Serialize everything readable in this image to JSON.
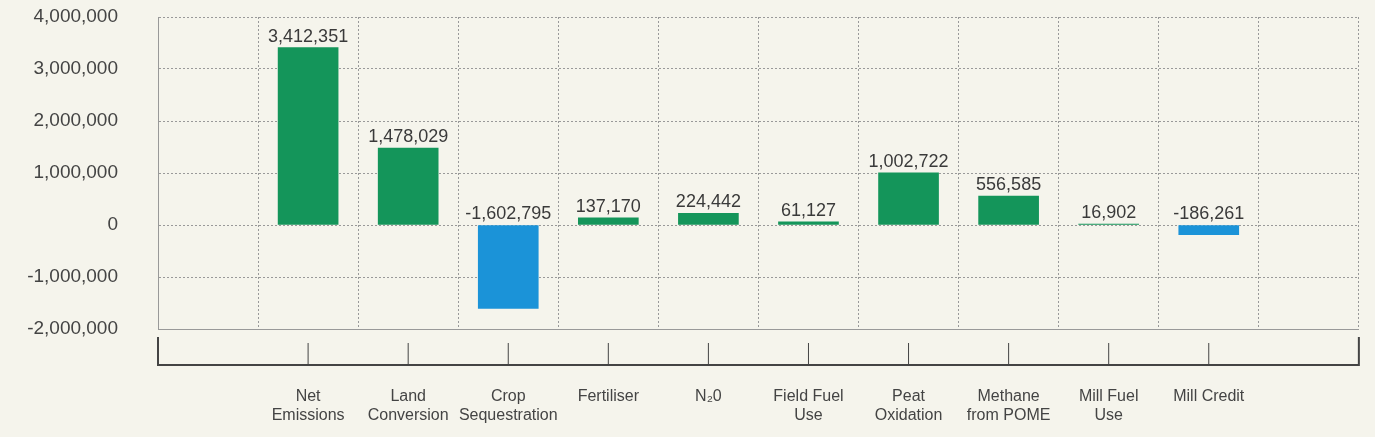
{
  "chart_data": {
    "type": "bar",
    "categories": [
      "Net\nEmissions",
      "Land\nConversion",
      "Crop\nSequestration",
      "Fertiliser",
      "N₂0",
      "Field Fuel\nUse",
      "Peat\nOxidation",
      "Methane\nfrom POME",
      "Mill Fuel\nUse",
      "Mill Credit"
    ],
    "values": [
      3412351,
      1478029,
      -1602795,
      137170,
      224442,
      61127,
      1002722,
      556585,
      16902,
      -186261
    ],
    "colors": [
      "#14955a",
      "#14955a",
      "#1b93d8",
      "#14955a",
      "#14955a",
      "#14955a",
      "#14955a",
      "#14955a",
      "#14955a",
      "#1b93d8"
    ],
    "ylim": [
      -2000000,
      4000000
    ],
    "yticks": [
      {
        "value": -2000000,
        "label": "-2,000,000"
      },
      {
        "value": -1000000,
        "label": "-1,000,000"
      },
      0,
      {
        "value": 1000000,
        "label": "1,000,000"
      },
      {
        "value": 2000000,
        "label": "2,000,000"
      },
      {
        "value": 3000000,
        "label": "3,000,000"
      },
      {
        "value": 4000000,
        "label": "4,000,000"
      }
    ],
    "value_labels": [
      "3,412,351",
      "1,478,029",
      "-1,602,795",
      "137,170",
      "224,442",
      "61,127",
      "1,002,722",
      "556,585",
      "16,902",
      "-186,261"
    ],
    "grid": true,
    "legend": false
  }
}
